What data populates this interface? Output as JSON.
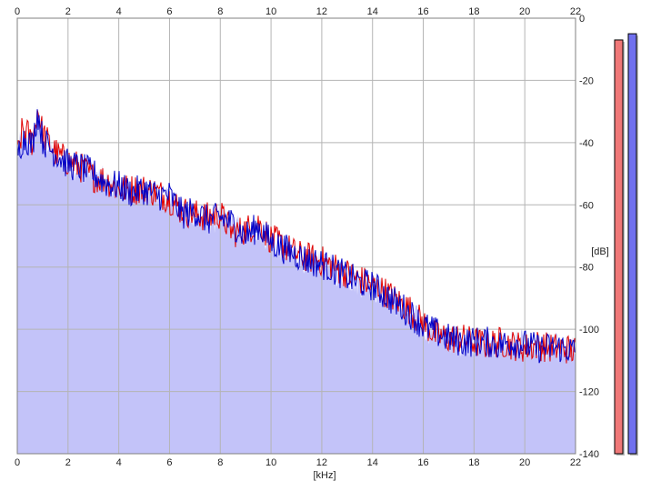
{
  "chart_data": {
    "type": "area",
    "title": "",
    "xlabel": "[kHz]",
    "ylabel": "[dB]",
    "xlim": [
      0,
      22
    ],
    "ylim": [
      -140,
      0
    ],
    "xticks": [
      0,
      2,
      4,
      6,
      8,
      10,
      12,
      14,
      16,
      18,
      20,
      22
    ],
    "xtick_labels": [
      "0",
      "2",
      "4",
      "6",
      "8",
      "10",
      "12",
      "14",
      "16",
      "18",
      "20",
      "22"
    ],
    "yticks": [
      0,
      -20,
      -40,
      -60,
      -80,
      -100,
      -120,
      -140
    ],
    "ytick_labels": [
      "0",
      "-20",
      "-40",
      "-60",
      "-80",
      "-100",
      "-120",
      "-140"
    ],
    "grid": true,
    "fill_color": "#c3c3f9",
    "series": [
      {
        "color": "#e00000",
        "x": [
          0,
          0.2,
          0.4,
          0.6,
          0.8,
          1,
          1.3,
          1.6,
          2,
          2.5,
          3,
          3.5,
          4,
          4.5,
          5,
          5.5,
          6,
          6.5,
          7,
          7.5,
          8,
          8.5,
          9,
          9.5,
          10,
          10.5,
          11,
          11.5,
          12,
          12.5,
          13,
          13.5,
          14,
          14.5,
          15,
          15.5,
          16,
          16.5,
          17,
          17.5,
          18,
          18.5,
          19,
          19.5,
          20,
          20.5,
          21,
          21.5,
          22
        ],
        "y": [
          -45,
          -36,
          -37,
          -40,
          -29,
          -37,
          -41,
          -44,
          -46,
          -48,
          -51,
          -52,
          -55,
          -55,
          -55,
          -56,
          -58,
          -62,
          -63,
          -64,
          -63,
          -69,
          -68,
          -66,
          -71,
          -73,
          -76,
          -77,
          -78,
          -80,
          -82,
          -84,
          -86,
          -88,
          -91,
          -94,
          -98,
          -102,
          -103,
          -103,
          -104,
          -105,
          -104,
          -105,
          -106,
          -105,
          -106,
          -106,
          -107
        ]
      },
      {
        "color": "#0000c8",
        "x": [
          0,
          0.2,
          0.4,
          0.6,
          0.8,
          1,
          1.3,
          1.6,
          2,
          2.5,
          3,
          3.5,
          4,
          4.5,
          5,
          5.5,
          6,
          6.5,
          7,
          7.5,
          8,
          8.5,
          9,
          9.5,
          10,
          10.5,
          11,
          11.5,
          12,
          12.5,
          13,
          13.5,
          14,
          14.5,
          15,
          15.5,
          16,
          16.5,
          17,
          17.5,
          18,
          18.5,
          19,
          19.5,
          20,
          20.5,
          21,
          21.5,
          22
        ],
        "y": [
          -44,
          -39,
          -39,
          -41,
          -30,
          -39,
          -42,
          -44,
          -47,
          -48,
          -50,
          -53,
          -54,
          -56,
          -55,
          -57,
          -57,
          -63,
          -62,
          -65,
          -64,
          -66,
          -70,
          -67,
          -72,
          -74,
          -76,
          -78,
          -79,
          -81,
          -83,
          -85,
          -86,
          -89,
          -92,
          -95,
          -99,
          -101,
          -103,
          -104,
          -104,
          -104,
          -105,
          -104,
          -105,
          -106,
          -106,
          -106,
          -107
        ]
      }
    ]
  },
  "meters": [
    {
      "level_db": -7,
      "color": "#f07878"
    },
    {
      "level_db": -5,
      "color": "#7070ee"
    }
  ]
}
